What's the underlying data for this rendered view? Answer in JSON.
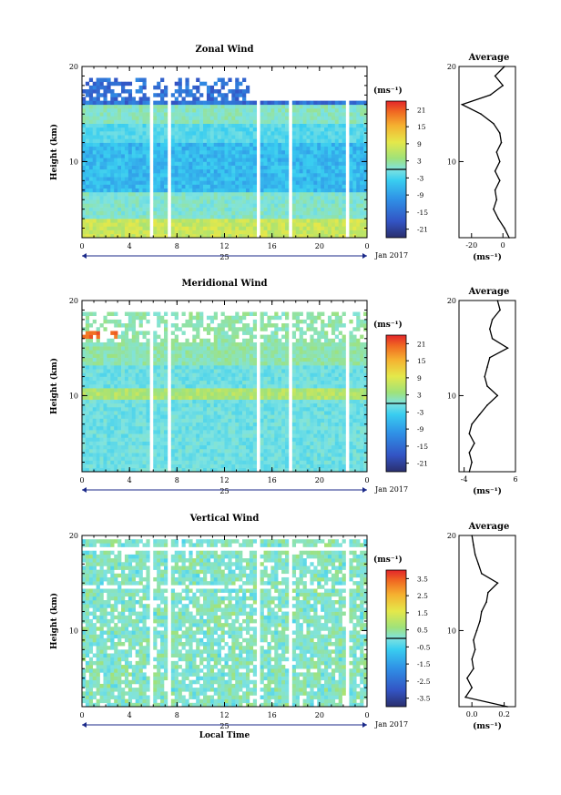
{
  "figure": {
    "xlabel": "Local Time",
    "date_label": "Jan 2017",
    "day_label": "25"
  },
  "chart_data": [
    {
      "type": "heatmap",
      "title": "Zonal Wind",
      "ylabel": "Height (km)",
      "xlabel": "Local Time",
      "x_ticks": [
        "0",
        "4",
        "8",
        "12",
        "16",
        "20",
        "0"
      ],
      "y_ticks": [
        "10",
        "20"
      ],
      "ylim": [
        2,
        20
      ],
      "xlim": [
        0,
        24
      ],
      "colorbar": {
        "unit": "(ms⁻¹)",
        "ticks": [
          "21",
          "15",
          "9",
          "3",
          "-3",
          "-9",
          "-15",
          "-21"
        ],
        "range": [
          -24,
          24
        ]
      },
      "profile": {
        "title": "Average",
        "xlabel": "(ms⁻¹)",
        "x_ticks": [
          "-20",
          "0"
        ],
        "y_ticks": [
          "10",
          "20"
        ],
        "xlim": [
          -28,
          8
        ],
        "height_km": [
          2,
          3,
          4,
          5,
          6,
          7,
          8,
          9,
          10,
          11,
          12,
          13,
          14,
          15,
          16,
          17,
          18,
          19,
          20
        ],
        "values": [
          4,
          1,
          -3,
          -6,
          -4,
          -5,
          -2,
          -5,
          -2,
          -4,
          -1,
          -2,
          -6,
          -14,
          -26,
          -8,
          0,
          -5,
          1
        ]
      }
    },
    {
      "type": "heatmap",
      "title": "Meridional Wind",
      "ylabel": "Height (km)",
      "xlabel": "Local Time",
      "x_ticks": [
        "0",
        "4",
        "8",
        "12",
        "16",
        "20",
        "0"
      ],
      "y_ticks": [
        "10",
        "20"
      ],
      "ylim": [
        2,
        20
      ],
      "xlim": [
        0,
        24
      ],
      "colorbar": {
        "unit": "(ms⁻¹)",
        "ticks": [
          "21",
          "15",
          "9",
          "3",
          "-3",
          "-9",
          "-15",
          "-21"
        ],
        "range": [
          -24,
          24
        ]
      },
      "profile": {
        "title": "Average",
        "xlabel": "(ms⁻¹)",
        "x_ticks": [
          "-4",
          "6"
        ],
        "y_ticks": [
          "10",
          "20"
        ],
        "xlim": [
          -5,
          6
        ],
        "height_km": [
          2,
          3,
          4,
          5,
          6,
          7,
          8,
          9,
          10,
          11,
          12,
          13,
          14,
          15,
          16,
          17,
          18,
          19,
          20
        ],
        "values": [
          -3,
          -2.5,
          -3,
          -2,
          -3,
          -2.5,
          -1,
          0.5,
          2.5,
          0.5,
          0,
          0.5,
          1,
          4.5,
          1.5,
          1,
          1.5,
          3,
          2.5
        ]
      }
    },
    {
      "type": "heatmap",
      "title": "Vertical Wind",
      "ylabel": "Height (km)",
      "xlabel": "Local Time",
      "x_ticks": [
        "0",
        "4",
        "8",
        "12",
        "16",
        "20",
        "0"
      ],
      "y_ticks": [
        "10",
        "20"
      ],
      "ylim": [
        2,
        20
      ],
      "xlim": [
        0,
        24
      ],
      "colorbar": {
        "unit": "(ms⁻¹)",
        "ticks": [
          "3.5",
          "2.5",
          "1.5",
          "0.5",
          "-0.5",
          "-1.5",
          "-2.5",
          "-3.5"
        ],
        "range": [
          -4,
          4
        ]
      },
      "profile": {
        "title": "Average",
        "xlabel": "(ms⁻¹)",
        "x_ticks": [
          "0.0",
          "0.2"
        ],
        "y_ticks": [
          "10",
          "20"
        ],
        "xlim": [
          -0.08,
          0.27
        ],
        "height_km": [
          2,
          3,
          4,
          5,
          6,
          7,
          8,
          9,
          10,
          11,
          12,
          13,
          14,
          15,
          16,
          17,
          18,
          19,
          20
        ],
        "values": [
          0.22,
          -0.04,
          0.0,
          -0.03,
          0.01,
          0.0,
          0.02,
          0.01,
          0.03,
          0.05,
          0.06,
          0.09,
          0.1,
          0.16,
          0.06,
          0.04,
          0.02,
          0.01,
          0.0
        ]
      }
    }
  ]
}
